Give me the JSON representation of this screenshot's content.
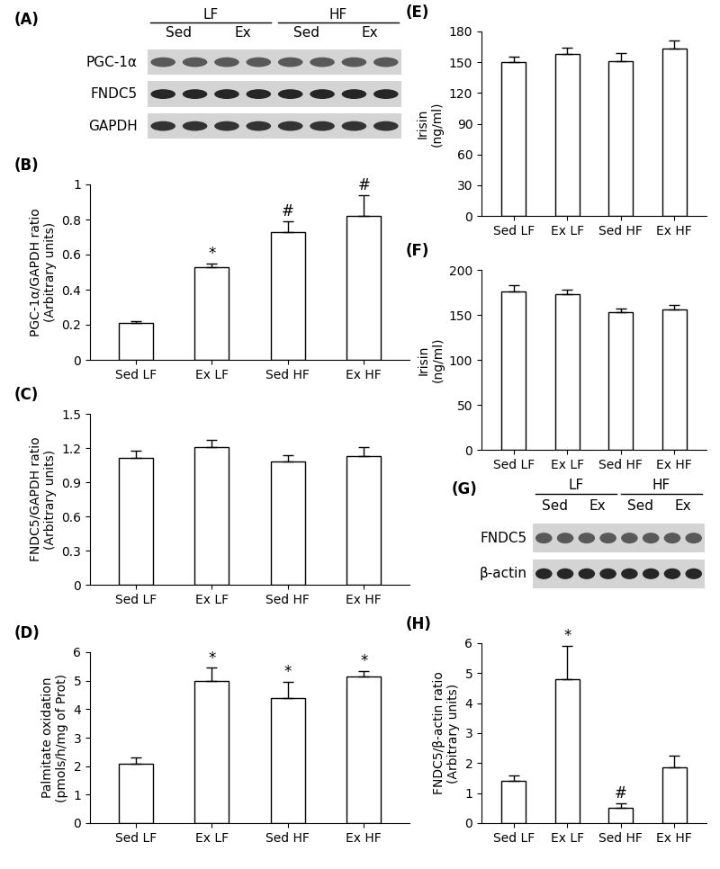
{
  "chart_data": [
    {
      "type": "bar",
      "title": "(B)",
      "y_label": "PGC-1α/GAPDH ratio\n(Arbitrary units)",
      "categories": [
        "Sed LF",
        "Ex LF",
        "Sed HF",
        "Ex HF"
      ],
      "values": [
        0.21,
        0.53,
        0.73,
        0.82
      ],
      "errors": [
        0.01,
        0.02,
        0.06,
        0.12
      ],
      "annotations": [
        null,
        "*",
        "#",
        "#"
      ],
      "color": "#ffffff",
      "ylim": [
        0,
        1
      ],
      "yticks": [
        0,
        0.2,
        0.4,
        0.6,
        0.8,
        1
      ]
    },
    {
      "type": "bar",
      "title": "(C)",
      "y_label": "FNDC5/GAPDH ratio\n(Arbitrary units)",
      "categories": [
        "Sed LF",
        "Ex LF",
        "Sed HF",
        "Ex HF"
      ],
      "values": [
        1.11,
        1.21,
        1.08,
        1.13
      ],
      "errors": [
        0.07,
        0.06,
        0.06,
        0.08
      ],
      "annotations": [
        null,
        null,
        null,
        null
      ],
      "color": "#ffffff",
      "ylim": [
        0,
        1.5
      ],
      "yticks": [
        0,
        0.3,
        0.6,
        0.9,
        1.2,
        1.5
      ]
    },
    {
      "type": "bar",
      "title": "(D)",
      "y_label": "Palmitate oxidation\n(pmols/h/mg of Prot)",
      "categories": [
        "Sed LF",
        "Ex LF",
        "Sed HF",
        "Ex HF"
      ],
      "values": [
        2.1,
        5.0,
        4.4,
        5.15
      ],
      "errors": [
        0.2,
        0.45,
        0.55,
        0.2
      ],
      "annotations": [
        null,
        "*",
        "*",
        "*"
      ],
      "color": "#ffffff",
      "ylim": [
        0,
        6
      ],
      "yticks": [
        0,
        1,
        2,
        3,
        4,
        5,
        6
      ]
    },
    {
      "type": "bar",
      "title": "(E)",
      "y_label": "Irisin\n(ng/ml)",
      "categories": [
        "Sed LF",
        "Ex LF",
        "Sed HF",
        "Ex HF"
      ],
      "values": [
        150,
        158,
        151,
        163
      ],
      "errors": [
        5,
        6,
        8,
        8
      ],
      "annotations": [
        null,
        null,
        null,
        null
      ],
      "color": "#ffffff",
      "ylim": [
        0,
        180
      ],
      "yticks": [
        0,
        30,
        60,
        90,
        120,
        150,
        180
      ]
    },
    {
      "type": "bar",
      "title": "(F)",
      "y_label": "Irisin\n(ng/ml)",
      "categories": [
        "Sed LF",
        "Ex LF",
        "Sed HF",
        "Ex HF"
      ],
      "values": [
        176,
        173,
        153,
        156
      ],
      "errors": [
        7,
        5,
        4,
        5
      ],
      "annotations": [
        null,
        null,
        null,
        null
      ],
      "color": "#ffffff",
      "ylim": [
        0,
        200
      ],
      "yticks": [
        0,
        50,
        100,
        150,
        200
      ]
    },
    {
      "type": "bar",
      "title": "(H)",
      "y_label": "FNDC5/β-actin ratio\n(Arbitrary units)",
      "categories": [
        "Sed LF",
        "Ex LF",
        "Sed HF",
        "Ex HF"
      ],
      "values": [
        1.4,
        4.8,
        0.5,
        1.85
      ],
      "errors": [
        0.2,
        1.1,
        0.15,
        0.4
      ],
      "annotations": [
        null,
        "*",
        "#",
        null
      ],
      "color": "#ffffff",
      "ylim": [
        0,
        6
      ],
      "yticks": [
        0,
        1,
        2,
        3,
        4,
        5,
        6
      ]
    }
  ],
  "blots": [
    {
      "title": "(A)",
      "groups": [
        {
          "label": "LF",
          "conditions": [
            "Sed",
            "Ex"
          ]
        },
        {
          "label": "HF",
          "conditions": [
            "Sed",
            "Ex"
          ]
        }
      ],
      "rows": [
        "PGC-1α",
        "FNDC5",
        "GAPDH"
      ]
    },
    {
      "title": "(G)",
      "groups": [
        {
          "label": "LF",
          "conditions": [
            "Sed",
            "Ex"
          ]
        },
        {
          "label": "HF",
          "conditions": [
            "Sed",
            "Ex"
          ]
        }
      ],
      "rows": [
        "FNDC5",
        "β-actin"
      ]
    }
  ]
}
